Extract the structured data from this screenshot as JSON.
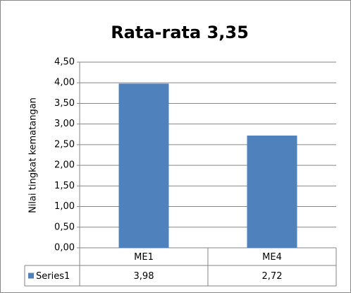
{
  "chart_data": {
    "type": "bar",
    "title": "Rata-rata 3,35",
    "y_label": "Nilai tingkat kematangan",
    "categories": [
      "ME1",
      "ME4"
    ],
    "series": [
      {
        "name": "Series1",
        "color": "#4f81bd",
        "values": [
          3.98,
          2.72
        ],
        "value_labels": [
          "3,98",
          "2,72"
        ]
      }
    ],
    "ylim": [
      0,
      4.5
    ],
    "yticks": [
      {
        "value": 0,
        "label": "0,00"
      },
      {
        "value": 0.5,
        "label": "0,50"
      },
      {
        "value": 1,
        "label": "1,00"
      },
      {
        "value": 1.5,
        "label": "1,50"
      },
      {
        "value": 2,
        "label": "2,00"
      },
      {
        "value": 2.5,
        "label": "2,50"
      },
      {
        "value": 3,
        "label": "3,00"
      },
      {
        "value": 3.5,
        "label": "3,50"
      },
      {
        "value": 4,
        "label": "4,00"
      },
      {
        "value": 4.5,
        "label": "4,50"
      }
    ],
    "grid": true
  }
}
